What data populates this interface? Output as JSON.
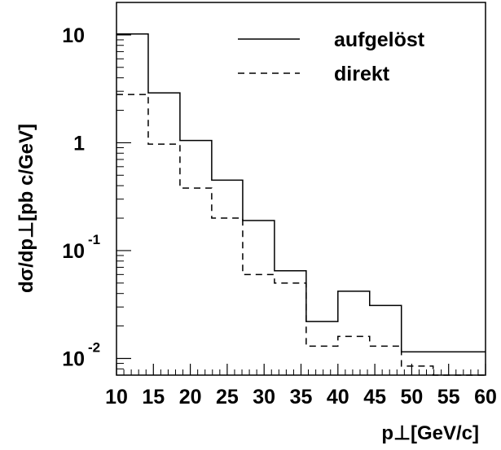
{
  "chart_data": {
    "type": "step",
    "xlabel": "p⊥[GeV/c]",
    "ylabel": "dσ/dp⊥[pb c/GeV]",
    "xlim": [
      10,
      60
    ],
    "ylim": [
      0.007,
      20
    ],
    "yscale": "log",
    "x_ticks": [
      "10",
      "15",
      "20",
      "25",
      "30",
      "35",
      "40",
      "45",
      "50",
      "55",
      "60"
    ],
    "y_ticks": [
      {
        "base": "10",
        "exp": "-2"
      },
      {
        "base": "10",
        "exp": "-1"
      },
      {
        "base": "1",
        "exp": ""
      },
      {
        "base": "10",
        "exp": ""
      }
    ],
    "legend_position": "top-right",
    "bin_edges": [
      10,
      14.3,
      18.6,
      22.9,
      27.1,
      31.4,
      35.7,
      40,
      44.3,
      48.6,
      52.9,
      57.1,
      60
    ],
    "series": [
      {
        "name": "aufgelöst",
        "style": "solid",
        "values": [
          10.2,
          2.9,
          1.05,
          0.45,
          0.19,
          0.065,
          0.022,
          0.042,
          0.031,
          0.0115,
          0.0115,
          0.0115
        ]
      },
      {
        "name": "direkt",
        "style": "dashed",
        "values": [
          2.8,
          0.97,
          0.38,
          0.2,
          0.06,
          0.05,
          0.013,
          0.016,
          0.013,
          0.0085,
          0.007,
          0.007
        ]
      }
    ]
  }
}
